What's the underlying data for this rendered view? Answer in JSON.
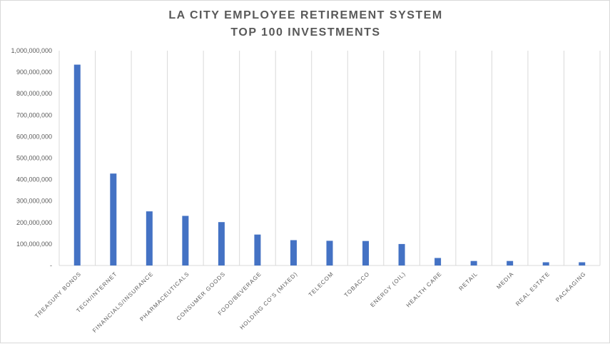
{
  "chart_data": {
    "type": "bar",
    "title": "LA CITY EMPLOYEE RETIREMENT SYSTEM",
    "subtitle": "TOP 100 INVESTMENTS",
    "categories": [
      "TREASURY BONDS",
      "TECH/INTERNET",
      "FINANCIALS/INSURANCE",
      "PHARMACEUTICALS",
      "CONSUMER GOODS",
      "FOOD/BEVERAGE",
      "HOLDING CO'S (MIXED)",
      "TELECOM",
      "TOBACCO",
      "ENERGY (OIL)",
      "HEALTH CARE",
      "RETAIL",
      "MEDIA",
      "REAL ESTATE",
      "PACKAGING"
    ],
    "values": [
      935000000,
      428000000,
      252000000,
      231000000,
      202000000,
      144000000,
      118000000,
      115000000,
      114000000,
      100000000,
      35000000,
      21000000,
      21000000,
      15000000,
      15000000
    ],
    "ylim": [
      0,
      1000000000
    ],
    "yticks": [
      0,
      100000000,
      200000000,
      300000000,
      400000000,
      500000000,
      600000000,
      700000000,
      800000000,
      900000000,
      1000000000
    ],
    "ytick_labels": [
      "-",
      "100,000,000",
      "200,000,000",
      "300,000,000",
      "400,000,000",
      "500,000,000",
      "600,000,000",
      "700,000,000",
      "800,000,000",
      "900,000,000",
      "1,000,000,000"
    ],
    "bar_color": "#4472C4",
    "grid": "vertical category separators",
    "legend": "none"
  }
}
